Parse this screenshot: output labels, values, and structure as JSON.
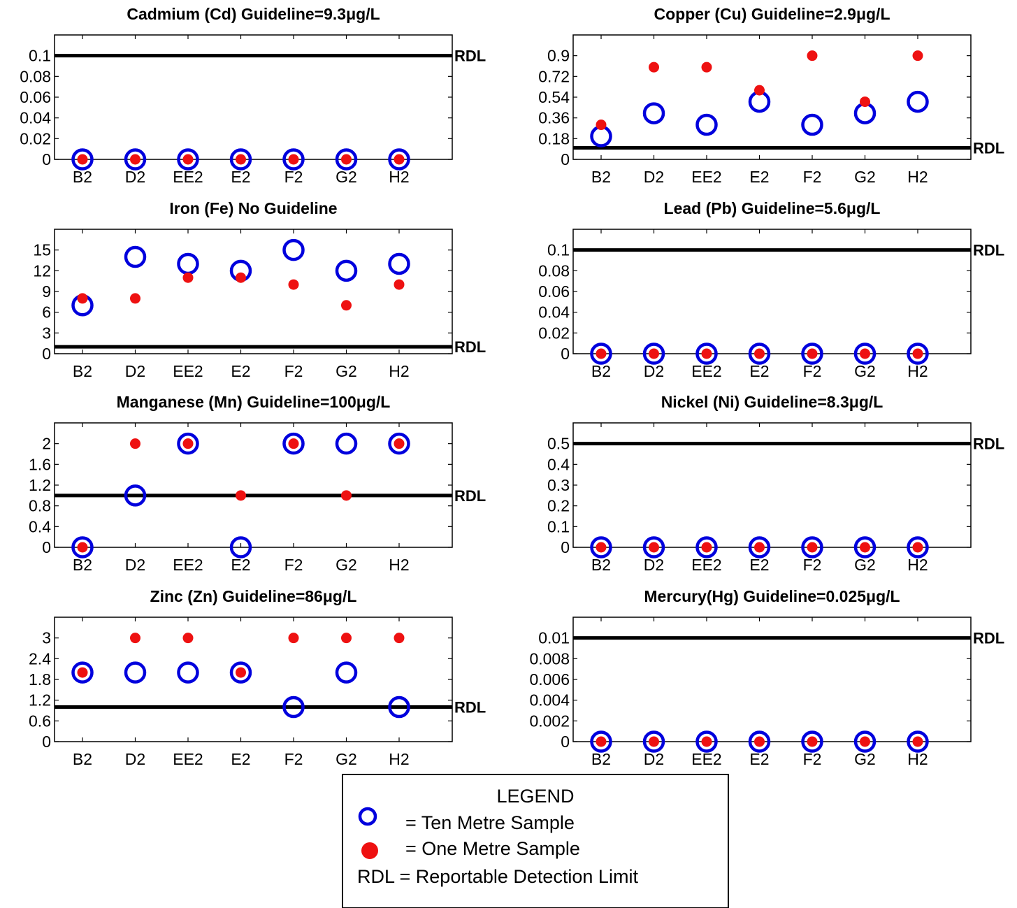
{
  "chart_data": [
    {
      "type": "scatter",
      "title": "Cadmium (Cd)  Guideline=9.3μg/L",
      "categories": [
        "B2",
        "D2",
        "EE2",
        "E2",
        "F2",
        "G2",
        "H2"
      ],
      "yticks": [
        "0",
        "0.02",
        "0.04",
        "0.06",
        "0.08",
        "0.1"
      ],
      "ylim": [
        0,
        0.12
      ],
      "rdl": 0.1,
      "series": [
        {
          "name": "Ten Metre Sample",
          "values": [
            0,
            0,
            0,
            0,
            0,
            0,
            0
          ]
        },
        {
          "name": "One Metre Sample",
          "values": [
            0,
            0,
            0,
            0,
            0,
            0,
            0
          ]
        }
      ]
    },
    {
      "type": "scatter",
      "title": "Copper (Cu)  Guideline=2.9μg/L",
      "categories": [
        "B2",
        "D2",
        "EE2",
        "E2",
        "F2",
        "G2",
        "H2"
      ],
      "yticks": [
        "0",
        "0.18",
        "0.36",
        "0.54",
        "0.72",
        "0.9"
      ],
      "ylim": [
        0,
        1.08
      ],
      "rdl": 0.1,
      "series": [
        {
          "name": "Ten Metre Sample",
          "values": [
            0.2,
            0.4,
            0.3,
            0.5,
            0.3,
            0.4,
            0.5
          ]
        },
        {
          "name": "One Metre Sample",
          "values": [
            0.3,
            0.8,
            0.8,
            0.6,
            0.9,
            0.5,
            0.9
          ]
        }
      ]
    },
    {
      "type": "scatter",
      "title": "Iron (Fe) No Guideline",
      "categories": [
        "B2",
        "D2",
        "EE2",
        "E2",
        "F2",
        "G2",
        "H2"
      ],
      "yticks": [
        "0",
        "3",
        "6",
        "9",
        "12",
        "15"
      ],
      "ylim": [
        0,
        18
      ],
      "rdl": 1,
      "series": [
        {
          "name": "Ten Metre Sample",
          "values": [
            7,
            14,
            13,
            12,
            15,
            12,
            13
          ]
        },
        {
          "name": "One Metre Sample",
          "values": [
            8,
            8,
            11,
            11,
            10,
            7,
            10
          ]
        }
      ]
    },
    {
      "type": "scatter",
      "title": "Lead (Pb)  Guideline=5.6μg/L",
      "categories": [
        "B2",
        "D2",
        "EE2",
        "E2",
        "F2",
        "G2",
        "H2"
      ],
      "yticks": [
        "0",
        "0.02",
        "0.04",
        "0.06",
        "0.08",
        "0.1"
      ],
      "ylim": [
        0,
        0.12
      ],
      "rdl": 0.1,
      "series": [
        {
          "name": "Ten Metre Sample",
          "values": [
            0,
            0,
            0,
            0,
            0,
            0,
            0
          ]
        },
        {
          "name": "One Metre Sample",
          "values": [
            0,
            0,
            0,
            0,
            0,
            0,
            0
          ]
        }
      ]
    },
    {
      "type": "scatter",
      "title": "Manganese (Mn)  Guideline=100μg/L",
      "categories": [
        "B2",
        "D2",
        "EE2",
        "E2",
        "F2",
        "G2",
        "H2"
      ],
      "yticks": [
        "0",
        "0.4",
        "0.8",
        "1.2",
        "1.6",
        "2"
      ],
      "ylim": [
        0,
        2.4
      ],
      "rdl": 1,
      "series": [
        {
          "name": "Ten Metre Sample",
          "values": [
            0,
            1,
            2,
            0,
            2,
            2,
            2
          ]
        },
        {
          "name": "One Metre Sample",
          "values": [
            0,
            2,
            2,
            1,
            2,
            1,
            2
          ]
        }
      ]
    },
    {
      "type": "scatter",
      "title": "Nickel (Ni)  Guideline=8.3μg/L",
      "categories": [
        "B2",
        "D2",
        "EE2",
        "E2",
        "F2",
        "G2",
        "H2"
      ],
      "yticks": [
        "0",
        "0.1",
        "0.2",
        "0.3",
        "0.4",
        "0.5"
      ],
      "ylim": [
        0,
        0.6
      ],
      "rdl": 0.5,
      "series": [
        {
          "name": "Ten Metre Sample",
          "values": [
            0,
            0,
            0,
            0,
            0,
            0,
            0
          ]
        },
        {
          "name": "One Metre Sample",
          "values": [
            0,
            0,
            0,
            0,
            0,
            0,
            0
          ]
        }
      ]
    },
    {
      "type": "scatter",
      "title": "Zinc (Zn)  Guideline=86μg/L",
      "categories": [
        "B2",
        "D2",
        "EE2",
        "E2",
        "F2",
        "G2",
        "H2"
      ],
      "yticks": [
        "0",
        "0.6",
        "1.2",
        "1.8",
        "2.4",
        "3"
      ],
      "ylim": [
        0,
        3.6
      ],
      "rdl": 1,
      "series": [
        {
          "name": "Ten Metre Sample",
          "values": [
            2,
            2,
            2,
            2,
            1,
            2,
            1
          ]
        },
        {
          "name": "One Metre Sample",
          "values": [
            2,
            3,
            3,
            2,
            3,
            3,
            3
          ]
        }
      ]
    },
    {
      "type": "scatter",
      "title": "Mercury(Hg)  Guideline=0.025μg/L",
      "categories": [
        "B2",
        "D2",
        "EE2",
        "E2",
        "F2",
        "G2",
        "H2"
      ],
      "yticks": [
        "0",
        "0.002",
        "0.004",
        "0.006",
        "0.008",
        "0.01"
      ],
      "ylim": [
        0,
        0.012
      ],
      "rdl": 0.01,
      "series": [
        {
          "name": "Ten Metre Sample",
          "values": [
            0,
            0,
            0,
            0,
            0,
            0,
            0
          ]
        },
        {
          "name": "One Metre Sample",
          "values": [
            0,
            0,
            0,
            0,
            0,
            0,
            0
          ]
        }
      ]
    }
  ],
  "rdl_label": "RDL",
  "legend": {
    "title": "LEGEND",
    "ten": "= Ten Metre Sample",
    "one": "= One Metre Sample",
    "rdl": "RDL = Reportable Detection Limit"
  },
  "colors": {
    "ten_metre": "#0000dd",
    "one_metre": "#ee1111",
    "rdl_line": "#000000"
  }
}
